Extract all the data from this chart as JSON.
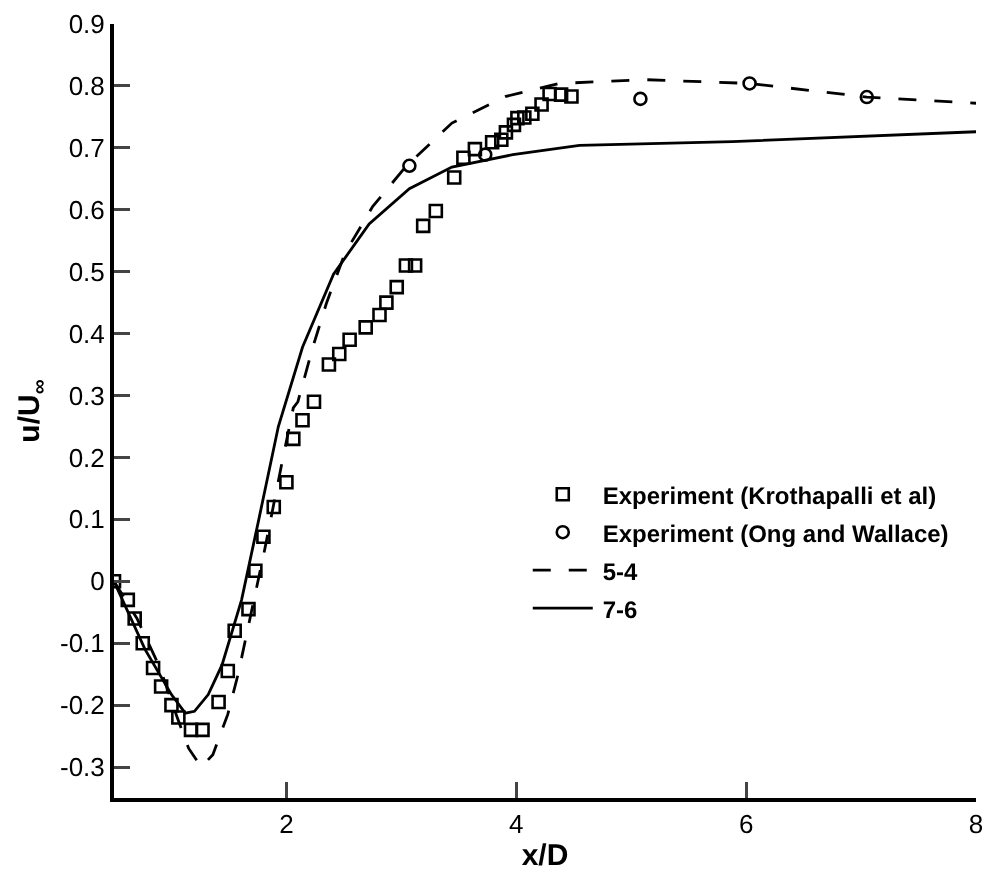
{
  "chart_data": {
    "type": "line",
    "xlabel": "x/D",
    "ylabel": "u/U$_{∞}$",
    "xlim": [
      0.5,
      8
    ],
    "xticks": [
      2,
      4,
      6,
      8
    ],
    "ylim": [
      -0.35,
      0.9
    ],
    "yticks": [
      -0.3,
      -0.2,
      -0.1,
      0,
      0.1,
      0.2,
      0.3,
      0.4,
      0.5,
      0.6,
      0.7,
      0.8,
      0.9
    ],
    "grid": false,
    "legend": "right",
    "series": [
      {
        "name": "Experiment (Krothapalli et al)",
        "type": "scatter",
        "marker": "square",
        "color": "#000000",
        "x": [
          0.5,
          0.62,
          0.68,
          0.75,
          0.84,
          0.91,
          1.0,
          1.06,
          1.17,
          1.27,
          1.41,
          1.49,
          1.55,
          1.67,
          1.73,
          1.8,
          1.89,
          2.0,
          2.06,
          2.14,
          2.24,
          2.37,
          2.46,
          2.55,
          2.69,
          2.81,
          2.87,
          2.96,
          3.04,
          3.12,
          3.19,
          3.3,
          3.46,
          3.54,
          3.64,
          3.79,
          3.87,
          3.91,
          3.98,
          4.01,
          4.07,
          4.14,
          4.22,
          4.29,
          4.39,
          4.48
        ],
        "values": [
          0,
          -0.03,
          -0.06,
          -0.1,
          -0.14,
          -0.17,
          -0.2,
          -0.22,
          -0.24,
          -0.24,
          -0.195,
          -0.145,
          -0.08,
          -0.045,
          0.017,
          0.072,
          0.12,
          0.16,
          0.23,
          0.26,
          0.29,
          0.35,
          0.367,
          0.39,
          0.41,
          0.43,
          0.45,
          0.475,
          0.51,
          0.51,
          0.574,
          0.598,
          0.652,
          0.684,
          0.698,
          0.709,
          0.713,
          0.725,
          0.737,
          0.748,
          0.749,
          0.755,
          0.77,
          0.787,
          0.786,
          0.783
        ]
      },
      {
        "name": "Experiment (Ong and Wallace)",
        "type": "scatter",
        "marker": "circle",
        "color": "#000000",
        "x": [
          3.07,
          3.73,
          5.08,
          6.03,
          7.05
        ],
        "values": [
          0.671,
          0.689,
          0.779,
          0.804,
          0.782
        ]
      },
      {
        "name": "5-4",
        "line_style": "dashed",
        "color": "#000000",
        "x": [
          0.5,
          0.7,
          0.9,
          1.05,
          1.15,
          1.26,
          1.36,
          1.49,
          1.58,
          1.69,
          1.81,
          1.96,
          2.06,
          2.1,
          2.23,
          2.35,
          2.51,
          2.75,
          3.04,
          3.44,
          3.91,
          4.37,
          5.13,
          6.03,
          7.05,
          8.0
        ],
        "values": [
          0,
          -0.06,
          -0.14,
          -0.22,
          -0.27,
          -0.3,
          -0.28,
          -0.215,
          -0.15,
          -0.054,
          0.05,
          0.19,
          0.28,
          0.29,
          0.378,
          0.45,
          0.53,
          0.605,
          0.67,
          0.74,
          0.783,
          0.804,
          0.81,
          0.804,
          0.782,
          0.772
        ]
      },
      {
        "name": "7-6",
        "line_style": "solid",
        "color": "#000000",
        "x": [
          0.5,
          0.77,
          1.0,
          1.12,
          1.2,
          1.32,
          1.44,
          1.61,
          1.76,
          1.93,
          2.14,
          2.41,
          2.72,
          3.07,
          3.44,
          3.97,
          4.55,
          5.88,
          8.0
        ],
        "values": [
          0,
          -0.11,
          -0.183,
          -0.213,
          -0.21,
          -0.183,
          -0.135,
          -0.03,
          0.1,
          0.25,
          0.378,
          0.496,
          0.577,
          0.634,
          0.669,
          0.689,
          0.704,
          0.71,
          0.726
        ]
      }
    ]
  }
}
